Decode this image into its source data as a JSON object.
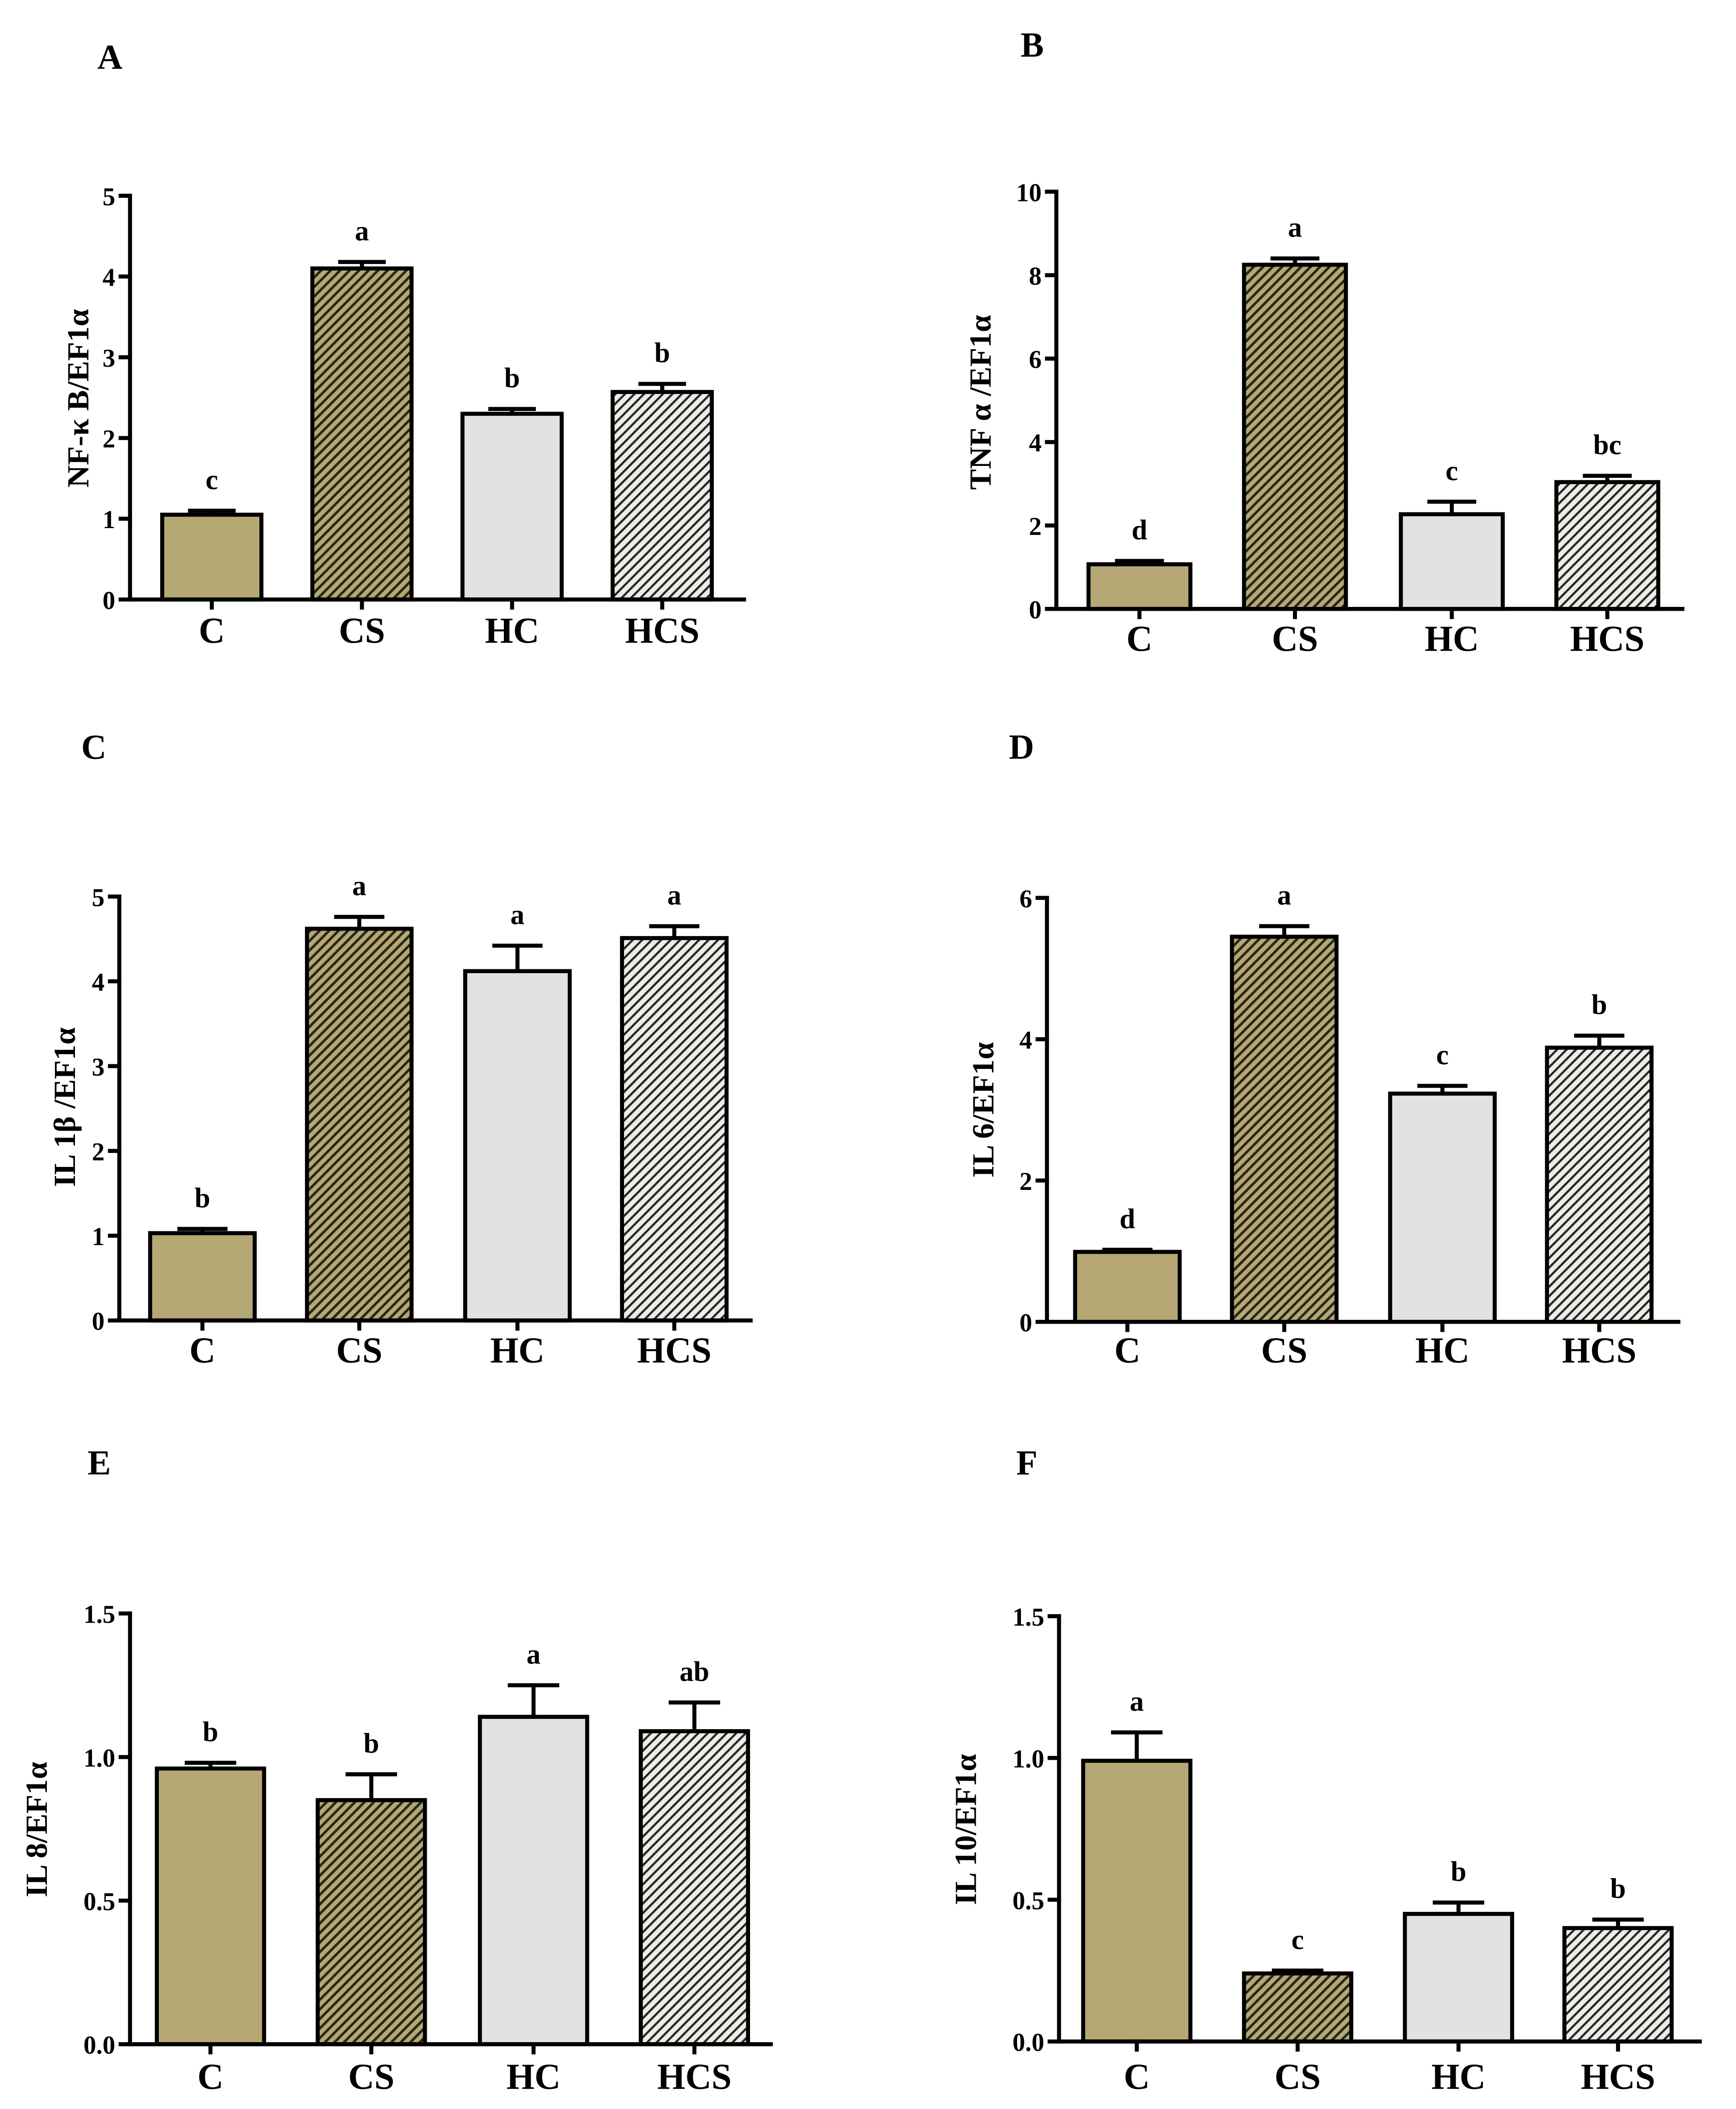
{
  "colors": {
    "C": "#b5a874",
    "CS": "#b5a874",
    "HC": "#e2e2e2",
    "HCS": "#ececec",
    "hatch": "#2a2718"
  },
  "chart_data": [
    {
      "panel": "A",
      "type": "bar",
      "xlabel": "",
      "ylabel": "NF-κ B/EF1α",
      "categories": [
        "C",
        "CS",
        "HC",
        "HCS"
      ],
      "values": [
        1.05,
        4.1,
        2.3,
        2.57
      ],
      "errors": [
        0.05,
        0.08,
        0.06,
        0.1
      ],
      "letters": [
        "c",
        "a",
        "b",
        "b"
      ],
      "ylim": [
        0,
        5
      ],
      "yticks": [
        0,
        1,
        2,
        3,
        4,
        5
      ],
      "ytick_labels": [
        "0",
        "1",
        "2",
        "3",
        "4",
        "5"
      ]
    },
    {
      "panel": "B",
      "type": "bar",
      "xlabel": "",
      "ylabel": "TNF α /EF1α",
      "categories": [
        "C",
        "CS",
        "HC",
        "HCS"
      ],
      "values": [
        1.07,
        8.25,
        2.27,
        3.04
      ],
      "errors": [
        0.08,
        0.15,
        0.3,
        0.15
      ],
      "letters": [
        "d",
        "a",
        "c",
        "bc"
      ],
      "ylim": [
        0,
        10
      ],
      "yticks": [
        0,
        2,
        4,
        6,
        8,
        10
      ],
      "ytick_labels": [
        "0",
        "2",
        "4",
        "6",
        "8",
        "10"
      ]
    },
    {
      "panel": "C",
      "type": "bar",
      "xlabel": "",
      "ylabel": "IL 1β /EF1α",
      "categories": [
        "C",
        "CS",
        "HC",
        "HCS"
      ],
      "values": [
        1.03,
        4.62,
        4.12,
        4.51
      ],
      "errors": [
        0.05,
        0.14,
        0.3,
        0.14
      ],
      "letters": [
        "b",
        "a",
        "a",
        "a"
      ],
      "ylim": [
        0,
        5
      ],
      "yticks": [
        0,
        1,
        2,
        3,
        4,
        5
      ],
      "ytick_labels": [
        "0",
        "1",
        "2",
        "3",
        "4",
        "5"
      ]
    },
    {
      "panel": "D",
      "type": "bar",
      "xlabel": "",
      "ylabel": "IL 6/EF1α",
      "categories": [
        "C",
        "CS",
        "HC",
        "HCS"
      ],
      "values": [
        0.99,
        5.45,
        3.23,
        3.88
      ],
      "errors": [
        0.03,
        0.15,
        0.11,
        0.17
      ],
      "letters": [
        "d",
        "a",
        "c",
        "b"
      ],
      "ylim": [
        0,
        6
      ],
      "yticks": [
        0,
        2,
        4,
        6
      ],
      "ytick_labels": [
        "0",
        "2",
        "4",
        "6"
      ]
    },
    {
      "panel": "E",
      "type": "bar",
      "xlabel": "",
      "ylabel": "IL 8/EF1α",
      "categories": [
        "C",
        "CS",
        "HC",
        "HCS"
      ],
      "values": [
        0.96,
        0.85,
        1.14,
        1.09
      ],
      "errors": [
        0.02,
        0.09,
        0.11,
        0.1
      ],
      "letters": [
        "b",
        "b",
        "a",
        "ab"
      ],
      "ylim": [
        0,
        1.5
      ],
      "yticks": [
        0,
        0.5,
        1.0,
        1.5
      ],
      "ytick_labels": [
        "0.0",
        "0.5",
        "1.0",
        "1.5"
      ]
    },
    {
      "panel": "F",
      "type": "bar",
      "xlabel": "",
      "ylabel": "IL 10/EF1α",
      "categories": [
        "C",
        "CS",
        "HC",
        "HCS"
      ],
      "values": [
        0.99,
        0.24,
        0.45,
        0.4
      ],
      "errors": [
        0.1,
        0.01,
        0.04,
        0.03
      ],
      "letters": [
        "a",
        "c",
        "b",
        "b"
      ],
      "ylim": [
        0,
        1.5
      ],
      "yticks": [
        0,
        0.5,
        1.0,
        1.5
      ],
      "ytick_labels": [
        "0.0",
        "0.5",
        "1.0",
        "1.5"
      ]
    }
  ]
}
